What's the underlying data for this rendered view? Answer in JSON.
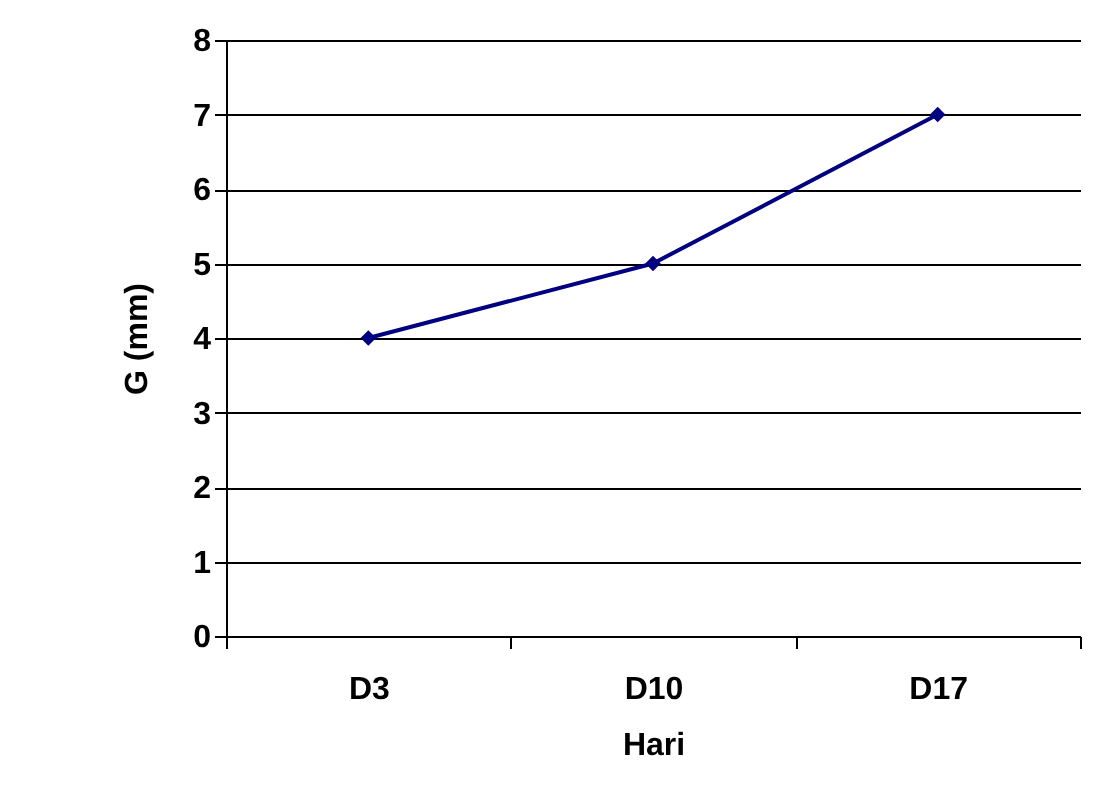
{
  "chart_data": {
    "type": "line",
    "xlabel": "Hari",
    "ylabel": "G (mm)",
    "categories": [
      "D3",
      "D10",
      "D17"
    ],
    "series": [
      {
        "color": "#000080",
        "values": [
          4,
          5,
          7
        ]
      }
    ],
    "ylim": [
      0,
      8
    ],
    "yticks": [
      0,
      1,
      2,
      3,
      4,
      5,
      6,
      7,
      8
    ],
    "grid": "y",
    "marker": "diamond",
    "line_style": "solid"
  }
}
